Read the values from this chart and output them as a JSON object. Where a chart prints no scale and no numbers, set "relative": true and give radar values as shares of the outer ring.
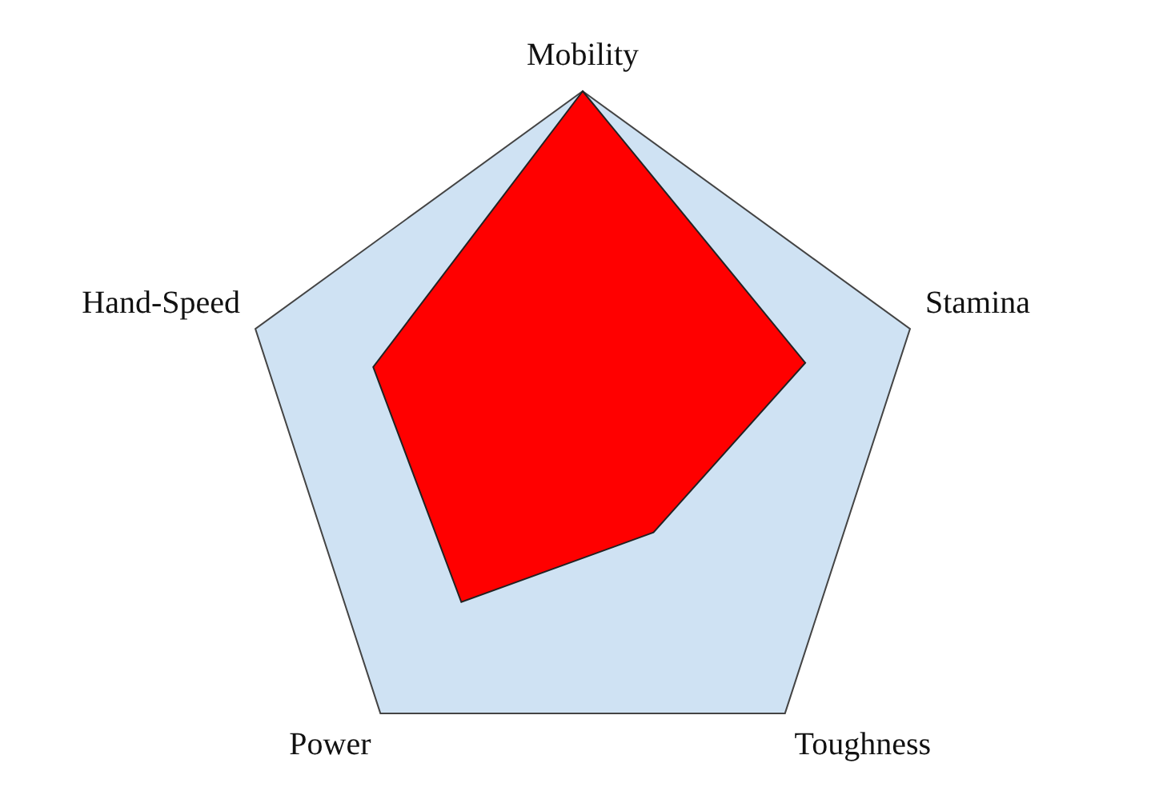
{
  "chart_data": {
    "type": "radar",
    "relative": true,
    "categories": [
      "Mobility",
      "Stamina",
      "Toughness",
      "Power",
      "Hand-Speed"
    ],
    "series": [
      {
        "color": "#ff0000",
        "values": [
          1,
          0.68,
          0.35,
          0.6,
          0.64
        ]
      }
    ],
    "grid": true,
    "legend": false
  }
}
